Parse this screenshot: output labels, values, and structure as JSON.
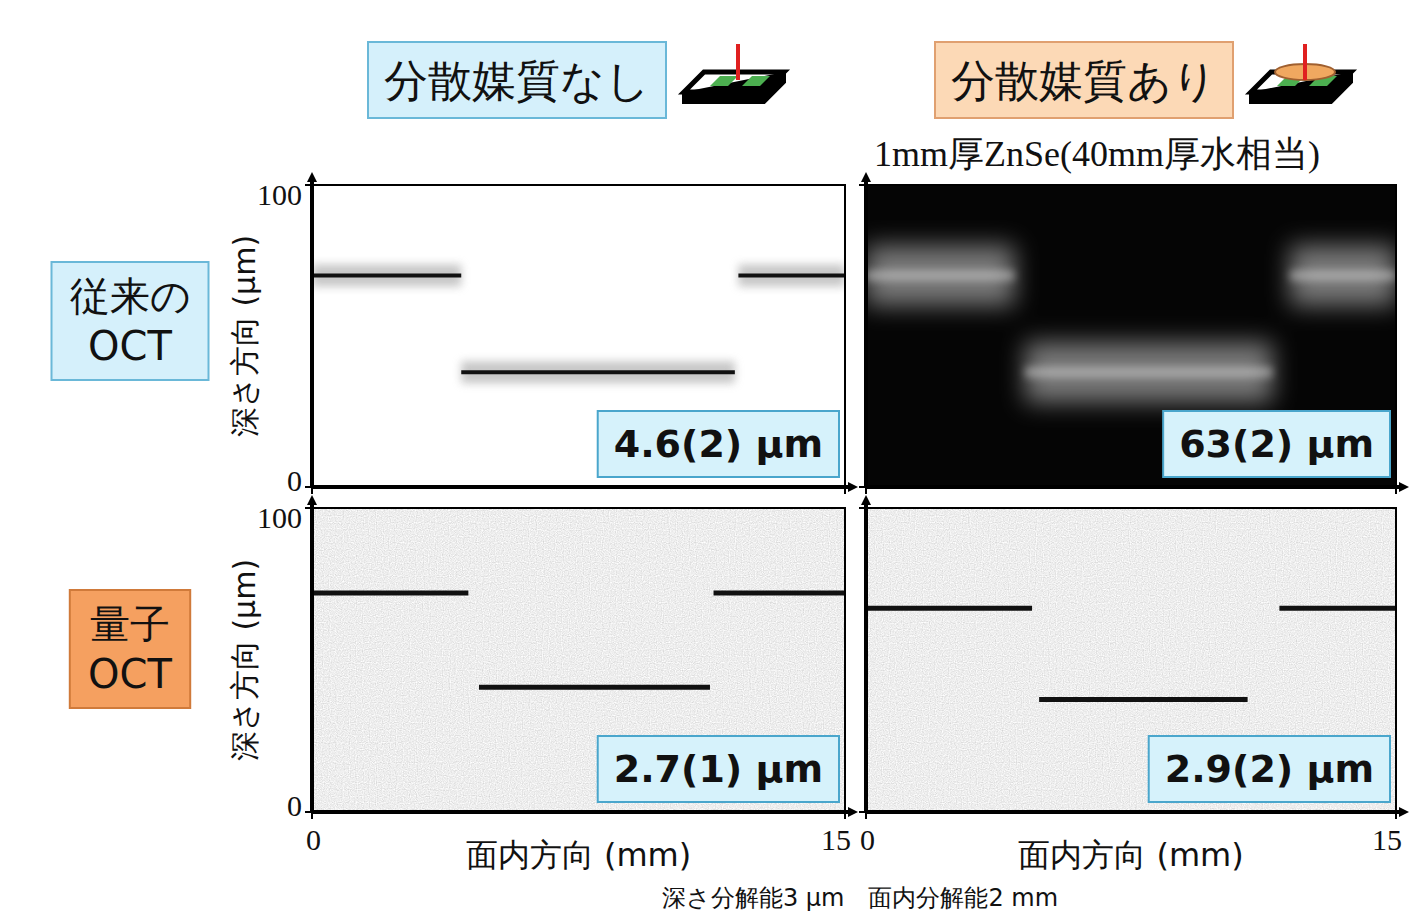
{
  "header": {
    "columns": [
      "分散媒質なし",
      "分散媒質あり"
    ],
    "subtitle": "1mm厚ZnSe(40mm厚水相当)"
  },
  "row_labels": [
    [
      "従来の",
      "OCT"
    ],
    [
      "量子",
      "OCT"
    ]
  ],
  "footnote": "深さ分解能3 μm　面内分解能2 mm",
  "chart_data": [
    {
      "type": "line",
      "line_style": "soft",
      "color": "#111111",
      "tick_labels": "y",
      "ylabel": "深さ方向 (μm)",
      "annotation": "4.6(2) μm",
      "xlim": [
        0,
        15
      ],
      "ylim": [
        0,
        100
      ],
      "xticks": [
        0,
        15
      ],
      "yticks": [
        0,
        100
      ],
      "x": [
        0,
        4.2,
        4.2,
        4.2,
        11.9,
        11.9,
        12.0,
        15
      ],
      "values": [
        70,
        70,
        null,
        38,
        38,
        null,
        70,
        70
      ]
    },
    {
      "type": "line",
      "line_style": "blurred",
      "color": "#d8d8d8",
      "tick_labels": false,
      "annotation": "63(2) μm",
      "xlim": [
        0,
        15
      ],
      "ylim": [
        0,
        100
      ],
      "xticks": [
        0,
        15
      ],
      "yticks": [
        0,
        100
      ],
      "x": [
        0,
        4.2,
        4.2,
        4.5,
        11.5,
        11.5,
        12.0,
        15
      ],
      "values": [
        70,
        70,
        null,
        38,
        38,
        null,
        70,
        70
      ]
    },
    {
      "type": "line",
      "line_style": "solid",
      "color": "#111111",
      "tick_labels": true,
      "ylabel": "深さ方向 (μm)",
      "xlabel": "面内方向 (mm)",
      "annotation": "2.7(1) μm",
      "xlim": [
        0,
        15
      ],
      "ylim": [
        0,
        100
      ],
      "xticks": [
        0,
        15
      ],
      "yticks": [
        0,
        100
      ],
      "x": [
        0,
        4.4,
        4.4,
        4.7,
        11.2,
        11.2,
        11.3,
        15
      ],
      "values": [
        72,
        72,
        null,
        41,
        41,
        null,
        72,
        72
      ]
    },
    {
      "type": "line",
      "line_style": "solid",
      "color": "#111111",
      "tick_labels": "x",
      "xlabel": "面内方向 (mm)",
      "annotation": "2.9(2) μm",
      "xlim": [
        0,
        15
      ],
      "ylim": [
        0,
        100
      ],
      "xticks": [
        0,
        15
      ],
      "yticks": [
        0,
        100
      ],
      "x": [
        0,
        4.7,
        4.7,
        4.9,
        10.8,
        10.8,
        11.7,
        15
      ],
      "values": [
        67,
        67,
        null,
        37,
        37,
        null,
        67,
        67
      ]
    }
  ]
}
